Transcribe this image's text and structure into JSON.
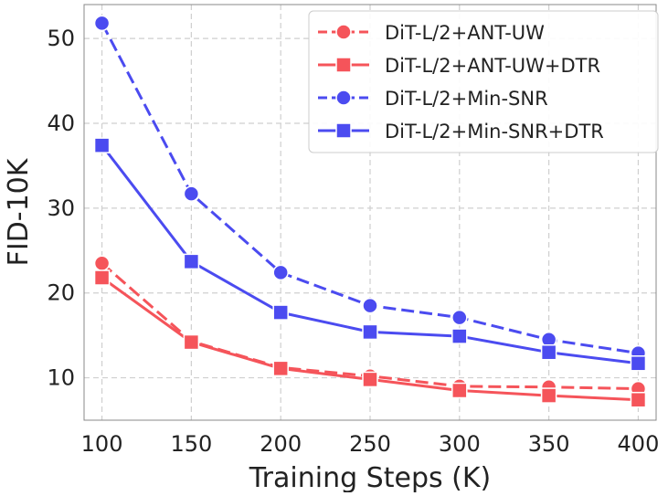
{
  "chart_data": {
    "type": "line",
    "title": "",
    "xlabel": "Training Steps (K)",
    "ylabel": "FID-10K",
    "x": [
      100,
      150,
      200,
      250,
      300,
      350,
      400
    ],
    "xlim": [
      90,
      410
    ],
    "ylim": [
      5,
      54
    ],
    "xticks": [
      100,
      150,
      200,
      250,
      300,
      350,
      400
    ],
    "yticks": [
      10,
      20,
      30,
      40,
      50
    ],
    "grid": true,
    "legend_position": "top-right",
    "series": [
      {
        "name": "DiT-L/2+ANT-UW",
        "color": "#f5545a",
        "marker": "circle",
        "linestyle": "dashed",
        "values": [
          23.5,
          14.3,
          11.2,
          10.2,
          9.0,
          8.9,
          8.7
        ]
      },
      {
        "name": "DiT-L/2+ANT-UW+DTR",
        "color": "#f5545a",
        "marker": "square",
        "linestyle": "solid",
        "values": [
          21.8,
          14.2,
          11.1,
          9.8,
          8.5,
          7.9,
          7.4
        ]
      },
      {
        "name": "DiT-L/2+Min-SNR",
        "color": "#4b4bf0",
        "marker": "circle",
        "linestyle": "dashed",
        "values": [
          51.8,
          31.7,
          22.4,
          18.5,
          17.1,
          14.5,
          12.9
        ]
      },
      {
        "name": "DiT-L/2+Min-SNR+DTR",
        "color": "#4b4bf0",
        "marker": "square",
        "linestyle": "solid",
        "values": [
          37.4,
          23.7,
          17.7,
          15.4,
          14.9,
          13.0,
          11.7
        ]
      }
    ]
  }
}
